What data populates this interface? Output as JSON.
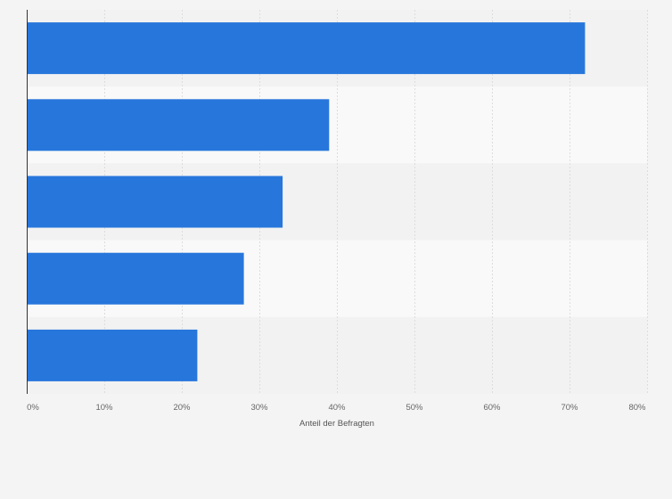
{
  "chart_data": {
    "type": "bar",
    "orientation": "horizontal",
    "categories": [
      "",
      "",
      "",
      "",
      ""
    ],
    "values": [
      72,
      39,
      33,
      28,
      22
    ],
    "xlabel": "Anteil der Befragten",
    "ylabel": "",
    "xlim": [
      0,
      80
    ],
    "x_ticks": [
      0,
      10,
      20,
      30,
      40,
      50,
      60,
      70,
      80
    ],
    "x_tick_labels": [
      "0%",
      "10%",
      "20%",
      "30%",
      "40%",
      "50%",
      "60%",
      "70%",
      "80%"
    ],
    "grid": true,
    "colors": {
      "bar": "#2776dc",
      "band_dark": "#f2f2f2",
      "band_light": "#f9f9f9",
      "grid": "#dddddd",
      "axis": "#333333"
    }
  }
}
